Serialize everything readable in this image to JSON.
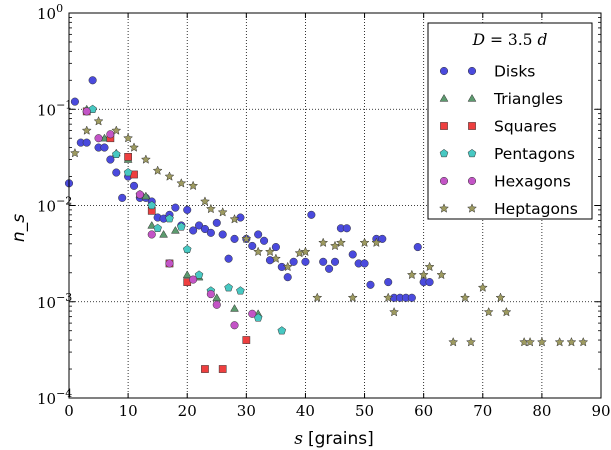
{
  "chart_data": {
    "type": "scatter",
    "xlabel": "s [grains]",
    "xlabel_var": "s",
    "xlabel_unit": "[grains]",
    "ylabel": "n_s",
    "xlim": [
      0,
      90
    ],
    "ylim": [
      0.0001,
      1
    ],
    "yscale": "log",
    "grid": true,
    "x_ticks": [
      0,
      10,
      20,
      30,
      40,
      50,
      60,
      70,
      80,
      90
    ],
    "y_ticks": [
      {
        "value": 0.0001,
        "base": "10",
        "exp": "−4"
      },
      {
        "value": 0.001,
        "base": "10",
        "exp": "−3"
      },
      {
        "value": 0.01,
        "base": "10",
        "exp": "−2"
      },
      {
        "value": 0.1,
        "base": "10",
        "exp": "−1"
      },
      {
        "value": 1,
        "base": "10",
        "exp": "0"
      }
    ],
    "legend": {
      "title": "D = 3.5 d",
      "title_parts": {
        "lhs": "D",
        "eq": " = 3.5 ",
        "rhs": "d"
      },
      "placement": "top-right"
    },
    "series": [
      {
        "name": "Disks",
        "marker": "circle",
        "color": "#4a4add",
        "x": [
          0,
          1,
          2,
          3,
          4,
          5,
          6,
          7,
          8,
          9,
          10,
          11,
          12,
          13,
          14,
          15,
          16,
          17,
          18,
          19,
          20,
          21,
          22,
          23,
          24,
          25,
          26,
          27,
          28,
          29,
          30,
          31,
          32,
          33,
          34,
          35,
          36,
          37,
          38,
          40,
          41,
          43,
          44,
          45,
          46,
          47,
          48,
          49,
          50,
          51,
          52,
          53,
          54,
          55,
          56,
          57,
          58,
          59,
          60,
          61
        ],
        "y": [
          0.017,
          0.12,
          0.045,
          0.045,
          0.2,
          0.04,
          0.04,
          0.03,
          0.022,
          0.012,
          0.02,
          0.016,
          0.012,
          0.012,
          0.011,
          0.0075,
          0.0073,
          0.008,
          0.0095,
          0.0062,
          0.009,
          0.0055,
          0.0062,
          0.0057,
          0.0052,
          0.0066,
          0.005,
          0.0028,
          0.0045,
          0.0075,
          0.0045,
          0.0038,
          0.005,
          0.0043,
          0.0027,
          0.0037,
          0.0023,
          0.0018,
          0.0026,
          0.0026,
          0.008,
          0.0026,
          0.0022,
          0.0026,
          0.0058,
          0.0058,
          0.0031,
          0.0025,
          0.0025,
          0.0015,
          0.0045,
          0.0045,
          0.0016,
          0.0011,
          0.0011,
          0.0011,
          0.0011,
          0.0037,
          0.0016,
          0.0016
        ]
      },
      {
        "name": "Triangles",
        "marker": "triangle",
        "color": "#5c9a6e",
        "x": [
          3,
          6,
          8,
          10,
          12,
          13,
          14,
          16,
          18,
          20,
          22,
          25,
          28,
          32
        ],
        "y": [
          0.1,
          0.05,
          0.035,
          0.03,
          0.013,
          0.0125,
          0.0062,
          0.005,
          0.0055,
          0.0019,
          0.0018,
          0.0011,
          0.00085,
          0.00075
        ]
      },
      {
        "name": "Squares",
        "marker": "square",
        "color": "#ee3f3f",
        "x": [
          3,
          7,
          10,
          11,
          14,
          17,
          20,
          23,
          26,
          30
        ],
        "y": [
          0.095,
          0.05,
          0.032,
          0.021,
          0.0088,
          0.0025,
          0.0016,
          0.0002,
          0.0002,
          0.0004
        ]
      },
      {
        "name": "Pentagons",
        "marker": "pentagon",
        "color": "#47c8c2",
        "x": [
          4,
          8,
          10,
          12,
          14,
          15,
          17,
          19,
          20,
          22,
          24,
          27,
          29,
          32,
          36
        ],
        "y": [
          0.1,
          0.034,
          0.022,
          0.013,
          0.01,
          0.0058,
          0.0073,
          0.006,
          0.0035,
          0.0019,
          0.0013,
          0.0014,
          0.0013,
          0.00068,
          0.0005
        ]
      },
      {
        "name": "Hexagons",
        "marker": "circle",
        "color": "#c354c6",
        "x": [
          3,
          5,
          7,
          12,
          14,
          17,
          21,
          24,
          25,
          28,
          31
        ],
        "y": [
          0.095,
          0.05,
          0.055,
          0.013,
          0.005,
          0.0025,
          0.0017,
          0.0012,
          0.00093,
          0.00057,
          0.00075
        ]
      },
      {
        "name": "Heptagons",
        "marker": "star",
        "color": "#9d9a60",
        "x": [
          1,
          3,
          5,
          8,
          10,
          11,
          13,
          15,
          17,
          19,
          21,
          23,
          24,
          26,
          28,
          30,
          32,
          34,
          35,
          37,
          39,
          40,
          42,
          43,
          45,
          46,
          48,
          50,
          52,
          54,
          55,
          58,
          60,
          61,
          63,
          65,
          67,
          68,
          70,
          71,
          73,
          74,
          77,
          78,
          80,
          83,
          85,
          87
        ],
        "y": [
          0.035,
          0.06,
          0.075,
          0.06,
          0.05,
          0.04,
          0.03,
          0.023,
          0.02,
          0.017,
          0.016,
          0.011,
          0.0092,
          0.0085,
          0.0072,
          0.0045,
          0.0033,
          0.0033,
          0.0028,
          0.0023,
          0.0032,
          0.0033,
          0.0011,
          0.0041,
          0.0038,
          0.0041,
          0.0011,
          0.0041,
          0.0041,
          0.0011,
          0.00078,
          0.0019,
          0.0019,
          0.0023,
          0.0019,
          0.00038,
          0.0011,
          0.00038,
          0.0014,
          0.00078,
          0.0011,
          0.00078,
          0.00038,
          0.00038,
          0.00038,
          0.00038,
          0.00038,
          0.00038
        ]
      }
    ]
  }
}
